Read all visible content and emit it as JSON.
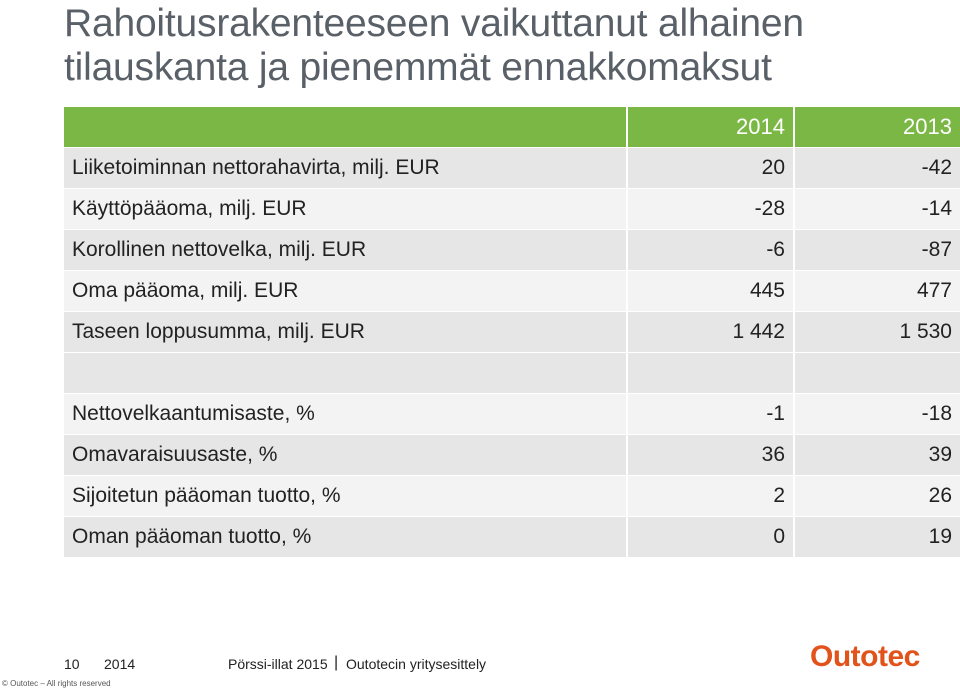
{
  "title": {
    "line1": "Rahoitusrakenteeseen vaikuttanut alhainen",
    "line2": "tilauskanta ja pienemmät ennakkomaksut"
  },
  "table": {
    "years": [
      "2014",
      "2013"
    ],
    "rows": [
      {
        "label": "Liiketoiminnan nettorahavirta, milj. EUR",
        "v2014": "20",
        "v2013": "-42"
      },
      {
        "label": "Käyttöpääoma, milj. EUR",
        "v2014": "-28",
        "v2013": "-14"
      },
      {
        "label": "Korollinen nettovelka, milj. EUR",
        "v2014": "-6",
        "v2013": "-87"
      },
      {
        "label": "Oma pääoma, milj. EUR",
        "v2014": "445",
        "v2013": "477"
      },
      {
        "label": "Taseen loppusumma, milj. EUR",
        "v2014": "1 442",
        "v2013": "1 530"
      }
    ],
    "ratios": [
      {
        "label": "Nettovelkaantumisaste, %",
        "v2014": "-1",
        "v2013": "-18"
      },
      {
        "label": "Omavaraisuusaste, %",
        "v2014": "36",
        "v2013": "39"
      },
      {
        "label": "Sijoitetun pääoman tuotto, %",
        "v2014": "2",
        "v2013": "26"
      },
      {
        "label": "Oman pääoman tuotto, %",
        "v2014": "0",
        "v2013": "19"
      }
    ]
  },
  "footer": {
    "page": "10",
    "year": "2014",
    "event": "Pörssi-illat 2015",
    "separator": "|",
    "topic": "Outotecin yritysesittely",
    "copyright": "© Outotec – All rights reserved",
    "logo": "Outotec"
  },
  "colors": {
    "header_green": "#7ab745",
    "row_dark": "#e6e6e6",
    "row_light": "#f3f3f3",
    "logo_orange": "#e2531b",
    "title_gray": "#5a6068"
  }
}
